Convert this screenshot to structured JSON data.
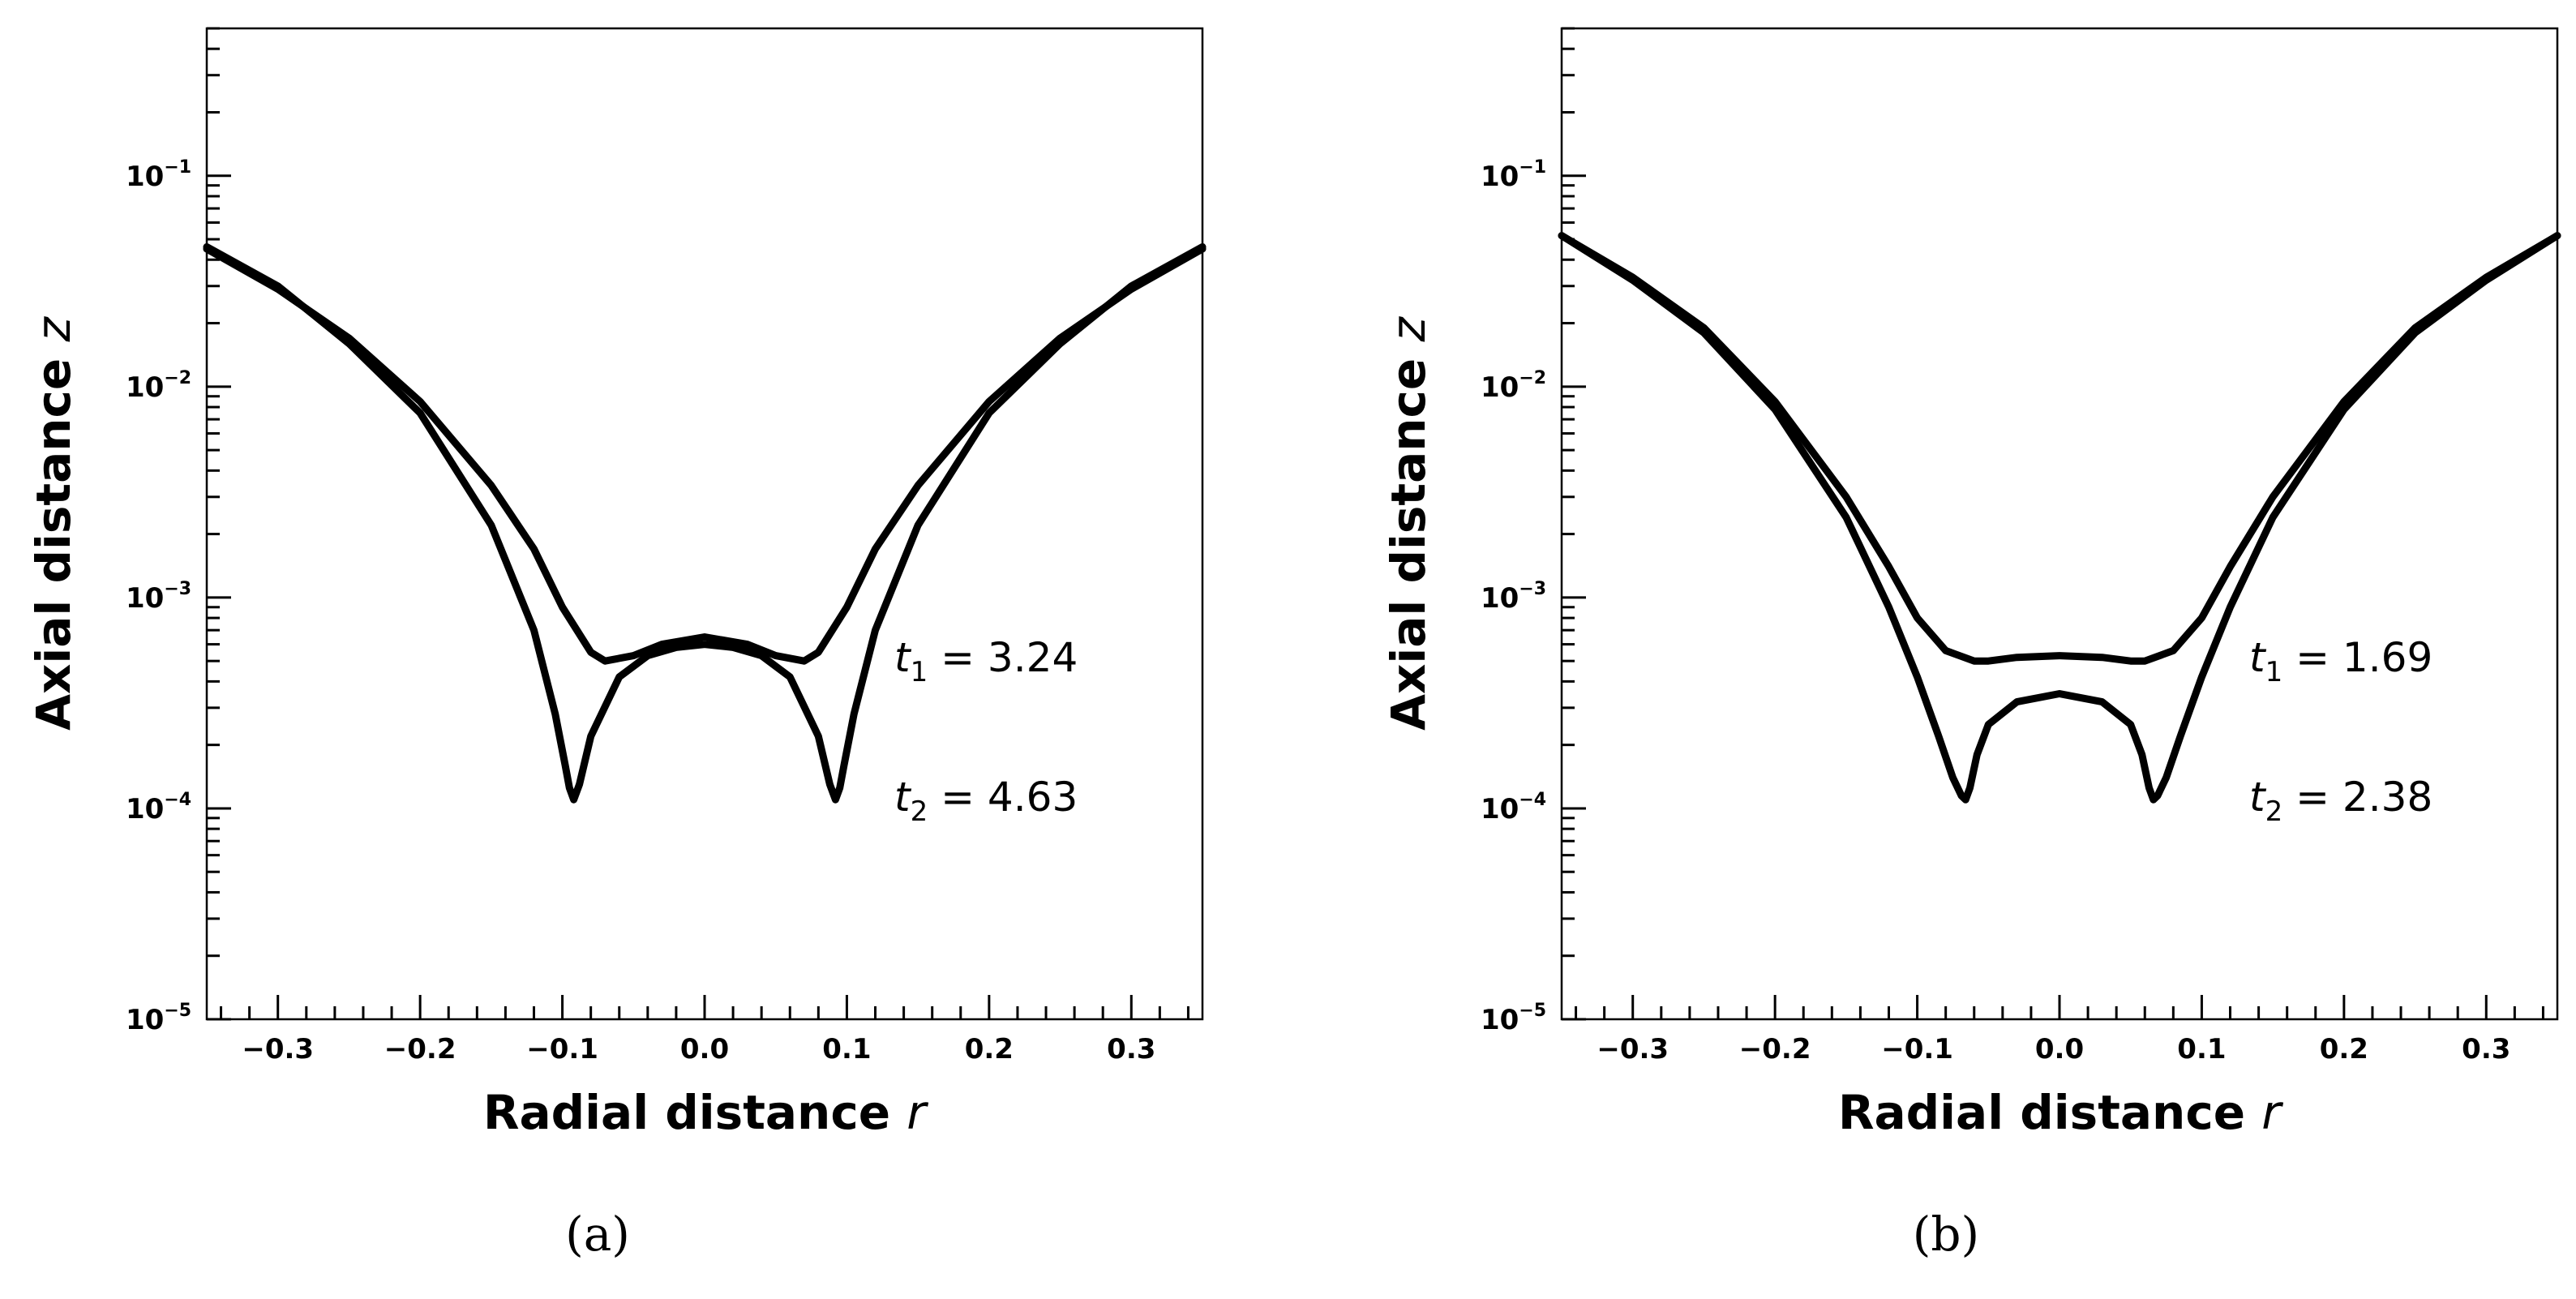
{
  "chart_data": [
    {
      "panel_label": "(a)",
      "type": "line",
      "xlabel": "Radial distance",
      "xlabel_var": "r",
      "ylabel": "Axial distance",
      "ylabel_var": "z",
      "yscale": "log",
      "xlim": [
        -0.35,
        0.35
      ],
      "ylim": [
        1e-05,
        0.5
      ],
      "xticks": [
        "−0.3",
        "−0.2",
        "−0.1",
        "0.0",
        "0.1",
        "0.2",
        "0.3"
      ],
      "yticks": [
        {
          "base": "10",
          "exp": "−5"
        },
        {
          "base": "10",
          "exp": "−4"
        },
        {
          "base": "10",
          "exp": "−3"
        },
        {
          "base": "10",
          "exp": "−2"
        },
        {
          "base": "10",
          "exp": "−1"
        }
      ],
      "grid": false,
      "annotations": [
        {
          "var": "t",
          "sub": "1",
          "text": " = 3.24"
        },
        {
          "var": "t",
          "sub": "2",
          "text": " = 4.63"
        }
      ],
      "series": [
        {
          "x": [
            -0.35,
            -0.3,
            -0.25,
            -0.2,
            -0.15,
            -0.12,
            -0.1,
            -0.08,
            -0.07,
            -0.05,
            -0.03,
            0.0,
            0.03,
            0.05,
            0.07,
            0.08,
            0.1,
            0.12,
            0.15,
            0.2,
            0.25,
            0.3,
            0.35
          ],
          "y": [
            0.045,
            0.029,
            0.017,
            0.0085,
            0.0034,
            0.0017,
            0.0009,
            0.00055,
            0.0005,
            0.00053,
            0.0006,
            0.00065,
            0.0006,
            0.00053,
            0.0005,
            0.00055,
            0.0009,
            0.0017,
            0.0034,
            0.0085,
            0.017,
            0.029,
            0.045
          ]
        },
        {
          "x": [
            -0.35,
            -0.3,
            -0.25,
            -0.2,
            -0.15,
            -0.12,
            -0.105,
            -0.098,
            -0.095,
            -0.092,
            -0.088,
            -0.08,
            -0.06,
            -0.04,
            -0.02,
            0.0,
            0.02,
            0.04,
            0.06,
            0.08,
            0.088,
            0.092,
            0.095,
            0.098,
            0.105,
            0.12,
            0.15,
            0.2,
            0.25,
            0.3,
            0.35
          ],
          "y": [
            0.046,
            0.03,
            0.016,
            0.0075,
            0.0022,
            0.0007,
            0.00028,
            0.00016,
            0.000125,
            0.00011,
            0.00013,
            0.00022,
            0.00042,
            0.00053,
            0.00058,
            0.0006,
            0.00058,
            0.00053,
            0.00042,
            0.00022,
            0.00013,
            0.00011,
            0.000125,
            0.00016,
            0.00028,
            0.0007,
            0.0022,
            0.0075,
            0.016,
            0.03,
            0.046
          ]
        }
      ]
    },
    {
      "panel_label": "(b)",
      "type": "line",
      "xlabel": "Radial distance",
      "xlabel_var": "r",
      "ylabel": "Axial distance",
      "ylabel_var": "z",
      "yscale": "log",
      "xlim": [
        -0.35,
        0.35
      ],
      "ylim": [
        1e-05,
        0.5
      ],
      "xticks": [
        "−0.3",
        "−0.2",
        "−0.1",
        "0.0",
        "0.1",
        "0.2",
        "0.3"
      ],
      "yticks": [
        {
          "base": "10",
          "exp": "−5"
        },
        {
          "base": "10",
          "exp": "−4"
        },
        {
          "base": "10",
          "exp": "−3"
        },
        {
          "base": "10",
          "exp": "−2"
        },
        {
          "base": "10",
          "exp": "−1"
        }
      ],
      "grid": false,
      "annotations": [
        {
          "var": "t",
          "sub": "1",
          "text": " = 1.69"
        },
        {
          "var": "t",
          "sub": "2",
          "text": " = 2.38"
        }
      ],
      "series": [
        {
          "x": [
            -0.35,
            -0.3,
            -0.25,
            -0.2,
            -0.15,
            -0.12,
            -0.1,
            -0.08,
            -0.06,
            -0.05,
            -0.03,
            0.0,
            0.03,
            0.05,
            0.06,
            0.08,
            0.1,
            0.12,
            0.15,
            0.2,
            0.25,
            0.3,
            0.35
          ],
          "y": [
            0.052,
            0.033,
            0.019,
            0.0085,
            0.003,
            0.0014,
            0.0008,
            0.00056,
            0.0005,
            0.0005,
            0.00052,
            0.00053,
            0.00052,
            0.0005,
            0.0005,
            0.00056,
            0.0008,
            0.0014,
            0.003,
            0.0085,
            0.019,
            0.033,
            0.052
          ]
        },
        {
          "x": [
            -0.35,
            -0.3,
            -0.25,
            -0.2,
            -0.15,
            -0.12,
            -0.1,
            -0.085,
            -0.075,
            -0.069,
            -0.066,
            -0.063,
            -0.058,
            -0.05,
            -0.03,
            0.0,
            0.03,
            0.05,
            0.058,
            0.063,
            0.066,
            0.069,
            0.075,
            0.085,
            0.1,
            0.12,
            0.15,
            0.2,
            0.25,
            0.3,
            0.35
          ],
          "y": [
            0.052,
            0.032,
            0.018,
            0.0078,
            0.0024,
            0.0009,
            0.00042,
            0.00022,
            0.00014,
            0.000115,
            0.00011,
            0.000125,
            0.00018,
            0.00025,
            0.00032,
            0.00035,
            0.00032,
            0.00025,
            0.00018,
            0.000125,
            0.00011,
            0.000115,
            0.00014,
            0.00022,
            0.00042,
            0.0009,
            0.0024,
            0.0078,
            0.018,
            0.032,
            0.052
          ]
        }
      ]
    }
  ]
}
